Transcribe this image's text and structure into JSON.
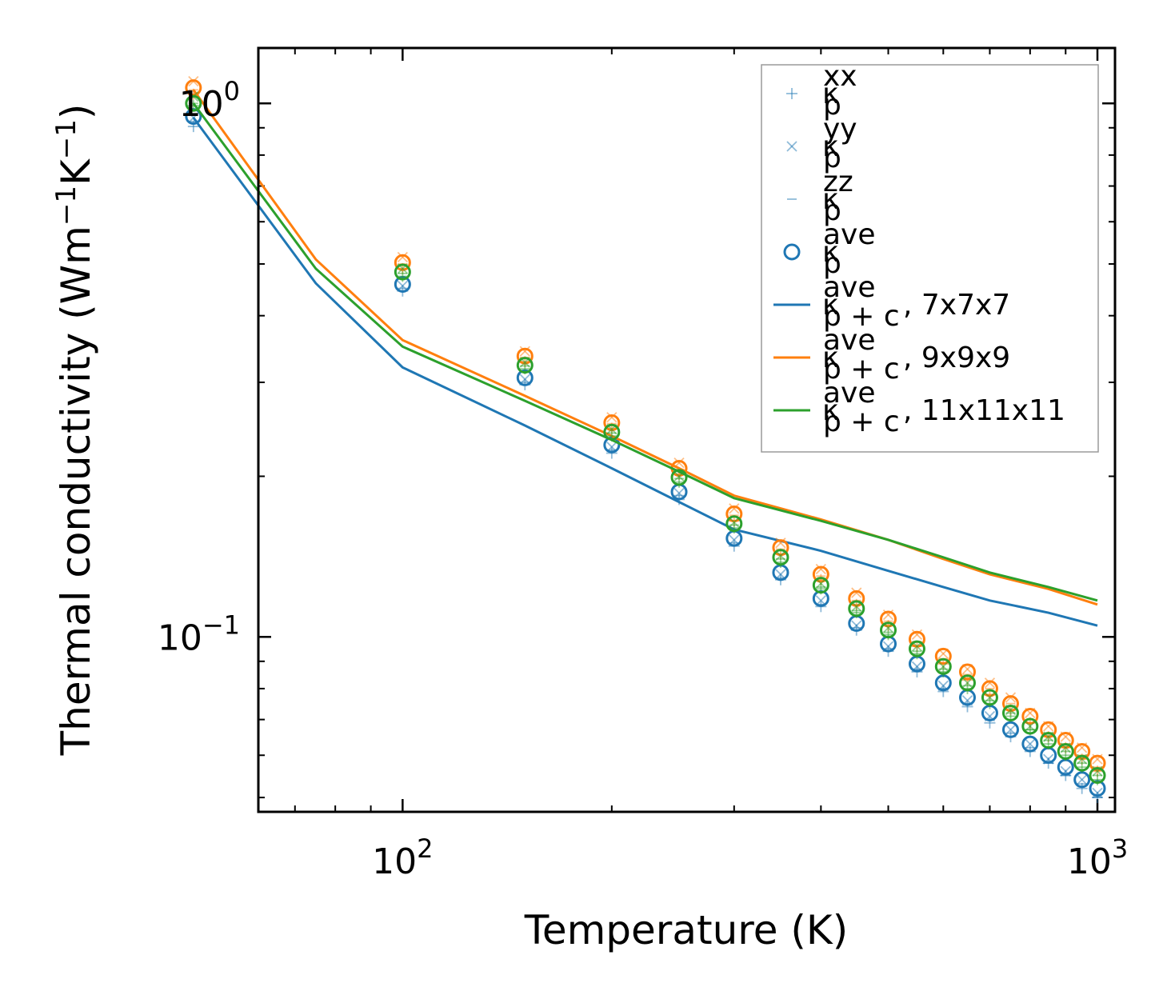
{
  "chart_data": {
    "type": "scatter",
    "scale": {
      "x": "log",
      "y": "log"
    },
    "xlim": [
      62,
      1060
    ],
    "ylim": [
      0.047,
      1.27
    ],
    "xlabel": "Temperature (K)",
    "ylabel": {
      "base": "Thermal conductivity (Wm",
      "exp1": "−1",
      "mid": "K",
      "exp2": "−1",
      "end": ")"
    },
    "x_ticks": [
      {
        "value": 100,
        "base": "10",
        "exp": "2"
      },
      {
        "value": 1000,
        "base": "10",
        "exp": "3"
      }
    ],
    "y_ticks": [
      {
        "value": 0.1,
        "base": "10",
        "exp": "−1"
      },
      {
        "value": 1.0,
        "base": "10",
        "exp": "0"
      }
    ],
    "x": [
      50,
      100,
      150,
      200,
      250,
      300,
      350,
      400,
      450,
      500,
      550,
      600,
      650,
      700,
      750,
      800,
      850,
      900,
      950,
      1000
    ],
    "colors": {
      "blue": "#1f77b4",
      "orange": "#ff7f0e",
      "green": "#2ca02c"
    },
    "series": [
      {
        "name": "7x7x7",
        "color": "#1f77b4",
        "kxx": [
          0.905,
          0.445,
          0.297,
          0.221,
          0.181,
          0.148,
          0.128,
          0.114,
          0.103,
          0.094,
          0.086,
          0.079,
          0.074,
          0.069,
          0.065,
          0.061,
          0.058,
          0.055,
          0.052,
          0.05
        ],
        "kyy": [
          0.94,
          0.455,
          0.304,
          0.227,
          0.186,
          0.152,
          0.131,
          0.117,
          0.105,
          0.096,
          0.088,
          0.081,
          0.076,
          0.071,
          0.067,
          0.063,
          0.059,
          0.056,
          0.054,
          0.051
        ],
        "kzz": [
          0.925,
          0.45,
          0.3,
          0.224,
          0.184,
          0.15,
          0.129,
          0.115,
          0.104,
          0.095,
          0.087,
          0.08,
          0.075,
          0.07,
          0.066,
          0.062,
          0.058,
          0.055,
          0.053,
          0.05
        ],
        "kave": [
          0.945,
          0.458,
          0.306,
          0.229,
          0.187,
          0.153,
          0.132,
          0.118,
          0.106,
          0.097,
          0.089,
          0.082,
          0.077,
          0.072,
          0.067,
          0.063,
          0.06,
          0.057,
          0.054,
          0.052
        ],
        "kpc": [
          0.94,
          0.46,
          0.32,
          0.249,
          0.207,
          0.179,
          0.159,
          0.145,
          0.133,
          0.124,
          0.117,
          0.111,
          0.105
        ]
      },
      {
        "name": "9x9x9",
        "color": "#ff7f0e",
        "kxx": [
          1.04,
          0.49,
          0.328,
          0.246,
          0.202,
          0.165,
          0.143,
          0.128,
          0.115,
          0.105,
          0.096,
          0.089,
          0.083,
          0.078,
          0.073,
          0.069,
          0.065,
          0.062,
          0.059,
          0.056
        ],
        "kyy": [
          1.1,
          0.515,
          0.343,
          0.258,
          0.212,
          0.174,
          0.15,
          0.134,
          0.121,
          0.11,
          0.101,
          0.093,
          0.087,
          0.082,
          0.077,
          0.072,
          0.068,
          0.065,
          0.062,
          0.059
        ],
        "kzz": [
          1.06,
          0.5,
          0.334,
          0.251,
          0.206,
          0.169,
          0.146,
          0.13,
          0.117,
          0.107,
          0.098,
          0.091,
          0.085,
          0.08,
          0.075,
          0.07,
          0.066,
          0.063,
          0.06,
          0.057
        ],
        "kave": [
          1.07,
          0.503,
          0.336,
          0.252,
          0.207,
          0.17,
          0.147,
          0.131,
          0.118,
          0.108,
          0.099,
          0.092,
          0.086,
          0.08,
          0.075,
          0.071,
          0.067,
          0.064,
          0.061,
          0.058
        ],
        "kpc": [
          1.06,
          0.51,
          0.36,
          0.283,
          0.238,
          0.207,
          0.184,
          0.166,
          0.152,
          0.14,
          0.131,
          0.123,
          0.115
        ]
      },
      {
        "name": "11x11x11",
        "color": "#2ca02c",
        "kxx": [
          0.99,
          0.474,
          0.318,
          0.238,
          0.195,
          0.16,
          0.138,
          0.123,
          0.111,
          0.101,
          0.093,
          0.086,
          0.08,
          0.075,
          0.071,
          0.067,
          0.063,
          0.06,
          0.057,
          0.054
        ],
        "kyy": [
          1.03,
          0.49,
          0.327,
          0.245,
          0.2,
          0.164,
          0.142,
          0.126,
          0.114,
          0.104,
          0.096,
          0.088,
          0.082,
          0.077,
          0.073,
          0.068,
          0.065,
          0.062,
          0.059,
          0.056
        ],
        "kzz": [
          1.0,
          0.48,
          0.322,
          0.241,
          0.198,
          0.162,
          0.14,
          0.124,
          0.112,
          0.102,
          0.094,
          0.087,
          0.081,
          0.076,
          0.072,
          0.067,
          0.064,
          0.061,
          0.058,
          0.055
        ],
        "kave": [
          1.0,
          0.483,
          0.323,
          0.242,
          0.199,
          0.163,
          0.141,
          0.125,
          0.113,
          0.103,
          0.095,
          0.088,
          0.082,
          0.077,
          0.072,
          0.068,
          0.064,
          0.061,
          0.058,
          0.055
        ],
        "kpc": [
          1.0,
          0.49,
          0.35,
          0.277,
          0.234,
          0.204,
          0.182,
          0.165,
          0.152,
          0.141,
          0.132,
          0.124,
          0.117
        ]
      }
    ],
    "kpc_x": [
      50,
      75,
      100,
      150,
      200,
      250,
      300,
      400,
      500,
      600,
      700,
      850,
      1000
    ],
    "legend": {
      "position": "top-right",
      "entries": [
        {
          "kind": "plus",
          "kappa": "κ",
          "sub": "p",
          "sup": "xx",
          "tail": ""
        },
        {
          "kind": "x",
          "kappa": "κ",
          "sub": "p",
          "sup": "yy",
          "tail": ""
        },
        {
          "kind": "dash",
          "kappa": "κ",
          "sub": "p",
          "sup": "zz",
          "tail": ""
        },
        {
          "kind": "circle",
          "kappa": "κ",
          "sub": "p",
          "sup": "ave",
          "tail": ""
        },
        {
          "kind": "line",
          "color": "#1f77b4",
          "kappa": "κ",
          "sub": "p + c",
          "sup": "ave",
          "tail": ", 7x7x7"
        },
        {
          "kind": "line",
          "color": "#ff7f0e",
          "kappa": "κ",
          "sub": "p + c",
          "sup": "ave",
          "tail": ", 9x9x9"
        },
        {
          "kind": "line",
          "color": "#2ca02c",
          "kappa": "κ",
          "sub": "p + c",
          "sup": "ave",
          "tail": ", 11x11x11"
        }
      ]
    }
  }
}
